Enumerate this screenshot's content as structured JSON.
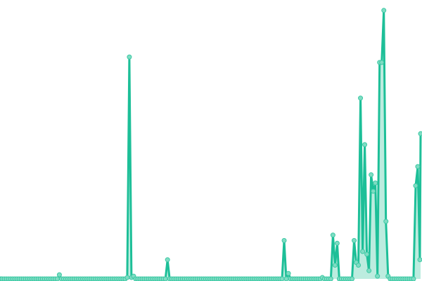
{
  "chart_data": {
    "type": "line",
    "title": "",
    "xlabel": "",
    "ylabel": "",
    "ylim": [
      0,
      100
    ],
    "grid": false,
    "legend": "none",
    "colors": {
      "line": "#1dbf98",
      "marker_fill": "#7fdcc3",
      "marker_stroke": "#3cc9a4",
      "area": "#8fe0c9"
    },
    "series": [
      {
        "values": [
          0,
          0,
          0,
          0,
          0,
          0,
          0,
          0,
          0,
          0,
          0,
          0,
          0,
          0,
          0,
          0,
          0,
          0,
          0,
          0,
          0,
          0,
          0,
          0,
          0,
          0,
          0,
          0,
          1.5,
          0,
          0,
          0,
          0,
          0,
          0,
          0,
          0,
          0,
          0,
          0,
          0,
          0,
          0,
          0,
          0,
          0,
          0,
          0,
          0,
          0,
          0,
          0,
          0,
          0,
          0,
          0,
          0,
          0,
          0,
          0,
          0.5,
          81,
          0.5,
          1,
          0,
          0,
          0,
          0,
          0,
          0,
          0,
          0,
          0,
          0,
          0,
          0,
          0,
          0,
          0,
          7,
          0,
          0,
          0,
          0,
          0,
          0,
          0,
          0,
          0,
          0,
          0,
          0,
          0,
          0,
          0,
          0,
          0,
          0,
          0,
          0,
          0,
          0,
          0,
          0,
          0,
          0,
          0,
          0,
          0,
          0,
          0,
          0,
          0,
          0,
          0,
          0,
          0,
          0,
          0,
          0,
          0,
          0,
          0,
          0,
          0,
          0,
          0,
          0,
          0,
          0,
          0,
          0,
          0,
          0,
          14,
          0,
          2,
          0,
          0,
          0,
          0,
          0,
          0,
          0,
          0,
          0,
          0,
          0,
          0,
          0,
          0,
          0,
          0.5,
          0,
          0,
          0,
          0,
          16,
          5,
          13,
          0,
          0,
          0,
          0,
          0,
          0,
          0,
          14,
          6,
          5,
          66,
          10,
          49,
          9,
          3,
          38,
          32,
          35,
          1,
          79,
          79,
          98,
          21,
          1,
          0,
          0,
          0,
          0,
          0,
          0,
          0,
          0,
          0,
          0,
          0,
          0,
          34,
          41,
          7,
          53
        ]
      }
    ]
  }
}
